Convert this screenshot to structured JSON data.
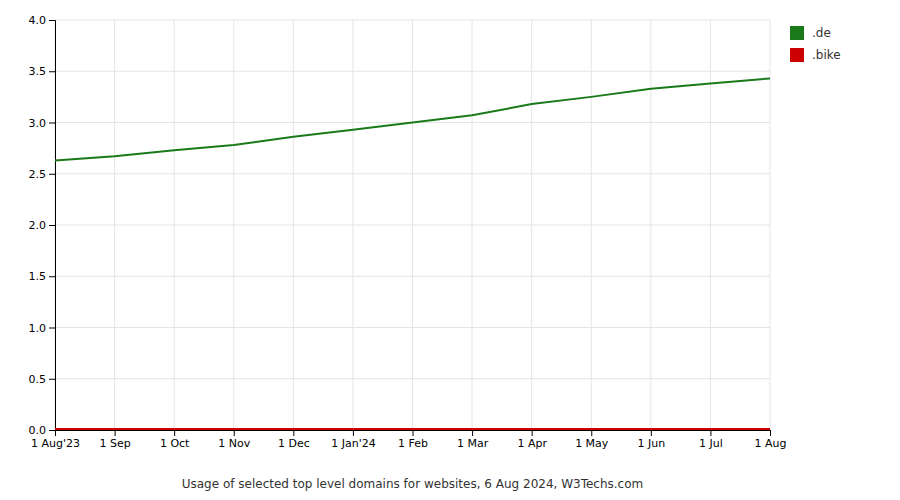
{
  "chart_data": {
    "type": "line",
    "title": "Usage of selected top level domains for websites, 6 Aug 2024, W3Techs.com",
    "categories": [
      "1 Aug'23",
      "1 Sep",
      "1 Oct",
      "1 Nov",
      "1 Dec",
      "1 Jan'24",
      "1 Feb",
      "1 Mar",
      "1 Apr",
      "1 May",
      "1 Jun",
      "1 Jul",
      "1 Aug"
    ],
    "series": [
      {
        "name": ".de",
        "color": "#1a7a1a",
        "values": [
          2.63,
          2.67,
          2.73,
          2.78,
          2.86,
          2.93,
          3.0,
          3.07,
          3.18,
          3.25,
          3.33,
          3.38,
          3.43
        ]
      },
      {
        "name": ".bike",
        "color": "#cc0000",
        "values": [
          0.01,
          0.01,
          0.01,
          0.01,
          0.01,
          0.01,
          0.01,
          0.01,
          0.01,
          0.01,
          0.01,
          0.01,
          0.01
        ]
      }
    ],
    "ylim": [
      0,
      4
    ],
    "yticks": [
      {
        "value": 0,
        "label": "0.0"
      },
      0.5,
      {
        "value": 1,
        "label": "1.0"
      },
      1.5,
      {
        "value": 2,
        "label": "2.0"
      },
      2.5,
      {
        "value": 3,
        "label": "3.0"
      },
      3.5,
      {
        "value": 4,
        "label": "4.0"
      }
    ],
    "grid": true,
    "legend": "upper right"
  }
}
